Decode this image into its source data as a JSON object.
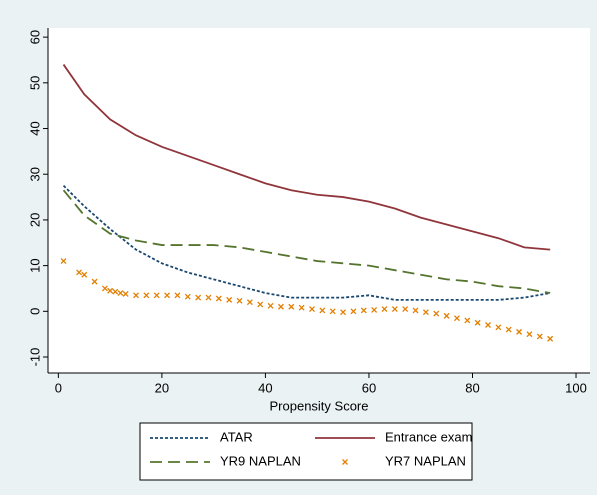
{
  "chart_data": {
    "type": "line",
    "x_label": "Propensity Score",
    "xlim": [
      -2,
      102.7
    ],
    "xticks": [
      0,
      20,
      40,
      60,
      80,
      100
    ],
    "ylim": [
      -13.5,
      62
    ],
    "yticks": [
      -10,
      0,
      10,
      20,
      30,
      40,
      50,
      60
    ],
    "legend": "bottom",
    "series": [
      {
        "name": "ATAR",
        "color": "#1a476f",
        "style": "dotted",
        "x": [
          1,
          5,
          10,
          15,
          20,
          25,
          30,
          35,
          40,
          45,
          50,
          55,
          60,
          65,
          70,
          75,
          80,
          85,
          90,
          95
        ],
        "values": [
          27.5,
          23,
          18,
          13.5,
          10.5,
          8.5,
          7,
          5.5,
          4,
          3,
          3,
          3,
          3.5,
          2.5,
          2.5,
          2.5,
          2.5,
          2.5,
          3,
          4
        ]
      },
      {
        "name": "Entrance exam",
        "color": "#90353b",
        "style": "solid",
        "x": [
          1,
          5,
          10,
          15,
          20,
          25,
          30,
          35,
          40,
          45,
          50,
          55,
          60,
          65,
          70,
          75,
          80,
          85,
          90,
          95
        ],
        "values": [
          54,
          47.5,
          42,
          38.5,
          36,
          34,
          32,
          30,
          28,
          26.5,
          25.5,
          25,
          24,
          22.5,
          20.5,
          19,
          17.5,
          16,
          14,
          13.5
        ]
      },
      {
        "name": "YR9 NAPLAN",
        "color": "#55752f",
        "style": "dashed",
        "x": [
          1,
          5,
          10,
          15,
          20,
          25,
          30,
          35,
          40,
          45,
          50,
          55,
          60,
          65,
          70,
          75,
          80,
          85,
          90,
          95
        ],
        "values": [
          26.5,
          21,
          17,
          15.5,
          14.5,
          14.5,
          14.5,
          14,
          13,
          12,
          11,
          10.5,
          10,
          9,
          8,
          7,
          6.5,
          5.5,
          5,
          4
        ]
      },
      {
        "name": "YR7 NAPLAN",
        "color": "#e37e00",
        "style": "scatter",
        "x": [
          1,
          4,
          5,
          7,
          9,
          10,
          11,
          12,
          13,
          15,
          17,
          19,
          21,
          23,
          25,
          27,
          29,
          31,
          33,
          35,
          37,
          39,
          41,
          43,
          45,
          47,
          49,
          51,
          53,
          55,
          57,
          59,
          61,
          63,
          65,
          67,
          69,
          71,
          73,
          75,
          77,
          79,
          81,
          83,
          85,
          87,
          89,
          91,
          93,
          95
        ],
        "values": [
          11,
          8.5,
          8,
          6.5,
          5,
          4.5,
          4.3,
          4,
          3.8,
          3.5,
          3.5,
          3.5,
          3.5,
          3.5,
          3.2,
          3,
          3,
          2.8,
          2.5,
          2.3,
          2,
          1.5,
          1.2,
          1,
          1,
          0.8,
          0.5,
          0.2,
          0,
          -0.2,
          0,
          0.2,
          0.3,
          0.5,
          0.5,
          0.5,
          0.2,
          -0.2,
          -0.5,
          -1,
          -1.5,
          -2,
          -2.5,
          -3,
          -3.5,
          -4,
          -4.5,
          -5,
          -5.5,
          -6
        ]
      }
    ]
  }
}
